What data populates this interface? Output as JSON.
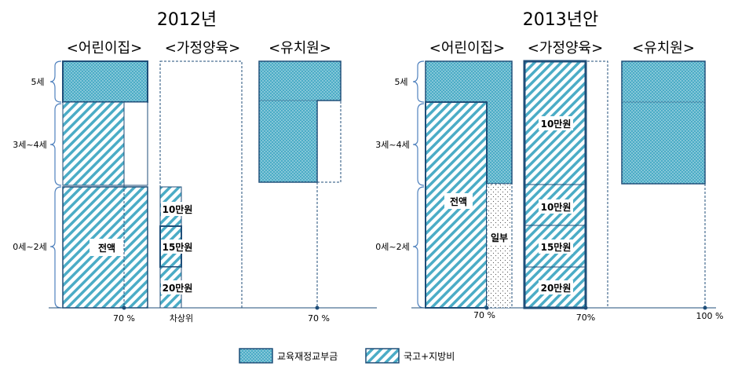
{
  "panels": [
    {
      "title": "2012년",
      "headers": [
        "<어린이집>",
        "<가정양육>",
        "<유치원>"
      ],
      "age_groups": [
        "5세",
        "3세~4세",
        "0세~2세"
      ],
      "daycare_label": "전액",
      "home_amounts": [
        "10만원",
        "15만원",
        "20만원"
      ],
      "daycare_pct": "70 %",
      "home_pct": "차상위",
      "kinder_pct": "70 %"
    },
    {
      "title": "2013년안",
      "headers": [
        "<어린이집>",
        "<가정양육>",
        "<유치원>"
      ],
      "age_groups": [
        "5세",
        "3세~4세",
        "0세~2세"
      ],
      "daycare_label": "전액",
      "daycare_partial_label": "일부",
      "home_amounts": [
        "10만원",
        "10만원",
        "15만원",
        "20만원"
      ],
      "daycare_pct": "70 %",
      "home_pct": "70%",
      "kinder_pct": "100  %"
    }
  ],
  "legend": [
    {
      "label": "교육재정교부금",
      "pattern": "dots",
      "color": "#4BACC6"
    },
    {
      "label": "국고+지방비",
      "pattern": "hatch",
      "color": "#4BACC6"
    }
  ],
  "colors": {
    "teal": "#4BACC6",
    "border": "#1F4E79",
    "dashed": "#1F4E79"
  }
}
